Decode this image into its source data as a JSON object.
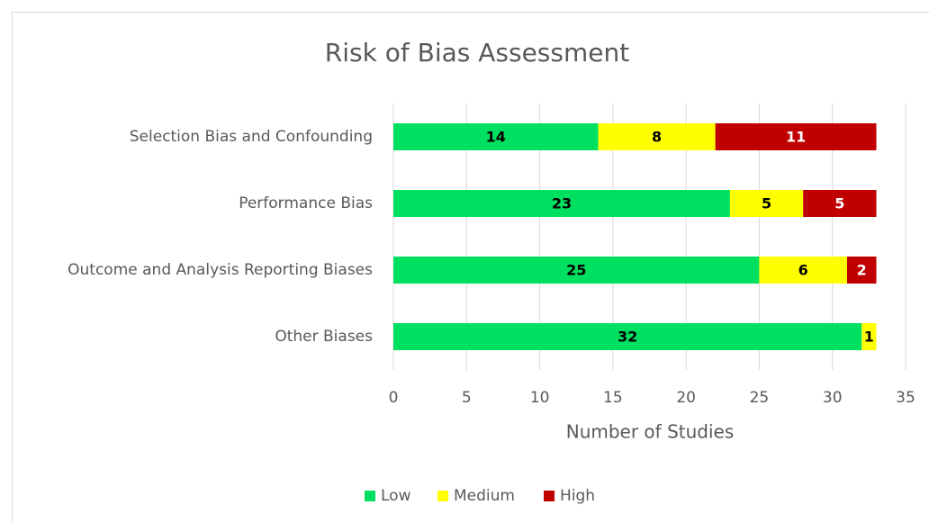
{
  "chart_data": {
    "type": "stacked_barh",
    "title": "Risk of Bias Assessment",
    "x_label": "Number of Studies",
    "categories": [
      "Selection Bias and Confounding",
      "Performance Bias",
      "Outcome and Analysis Reporting Biases",
      "Other Biases"
    ],
    "series": [
      {
        "name": "Low",
        "color": "#00e060",
        "label_color": "#000000",
        "values": [
          14,
          23,
          25,
          32
        ]
      },
      {
        "name": "Medium",
        "color": "#ffff00",
        "label_color": "#000000",
        "values": [
          8,
          5,
          6,
          1
        ]
      },
      {
        "name": "High",
        "color": "#c00000",
        "label_color": "#ffffff",
        "values": [
          11,
          5,
          2,
          null
        ]
      }
    ],
    "xlim": [
      0,
      35
    ],
    "xticks": [
      0,
      5,
      10,
      15,
      20,
      25,
      30,
      35
    ],
    "grid": true,
    "legend": "bottom"
  }
}
